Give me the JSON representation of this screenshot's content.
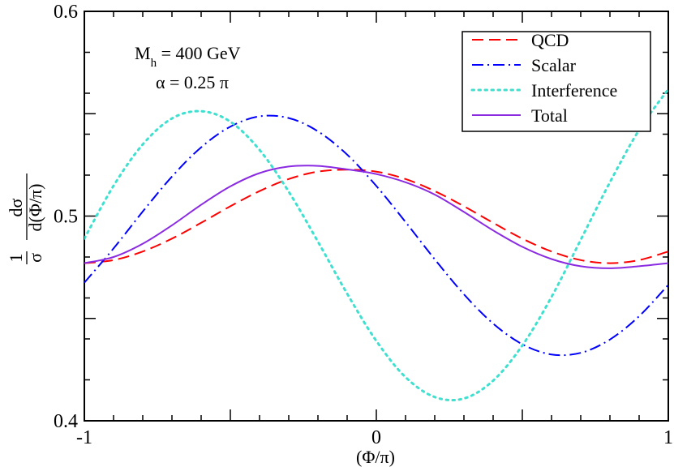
{
  "chart_data": {
    "type": "line",
    "xlabel": "(Φ/π)",
    "ylabel": {
      "one": "1",
      "sigma": "σ",
      "num": "dσ",
      "den": "d(Φ/π)"
    },
    "xlim": [
      -1,
      1
    ],
    "ylim": [
      0.4,
      0.6
    ],
    "xticks": [
      {
        "value": -1,
        "label": "-1"
      },
      {
        "value": 0,
        "label": "0"
      },
      {
        "value": 1,
        "label": "1"
      }
    ],
    "yticks": [
      {
        "value": 0.4,
        "label": "0.4"
      },
      {
        "value": 0.5,
        "label": "0.5"
      },
      {
        "value": 0.6,
        "label": "0.6"
      }
    ],
    "annotations": {
      "mass": {
        "base": "M",
        "sub": "h",
        "rest": " = 400 GeV"
      },
      "alpha": "α = 0.25 π"
    },
    "legend_position": "top-right",
    "x": [
      -1.0,
      -0.9,
      -0.8,
      -0.7,
      -0.6,
      -0.5,
      -0.4,
      -0.3,
      -0.2,
      -0.1,
      0.0,
      0.1,
      0.2,
      0.3,
      0.4,
      0.5,
      0.6,
      0.7,
      0.8,
      0.9,
      1.0
    ],
    "series": [
      {
        "name": "QCD",
        "color": "#ff0000",
        "dash": "14 7",
        "values": [
          0.477,
          0.4785,
          0.4827,
          0.489,
          0.4967,
          0.5048,
          0.5122,
          0.5181,
          0.5217,
          0.5227,
          0.5217,
          0.5181,
          0.5122,
          0.5048,
          0.4967,
          0.489,
          0.4827,
          0.4785,
          0.477,
          0.4785,
          0.4827
        ]
      },
      {
        "name": "Scalar",
        "color": "#0000ff",
        "dash": "14 5 2 5",
        "values": [
          0.4675,
          0.4842,
          0.5022,
          0.5193,
          0.5336,
          0.5437,
          0.5487,
          0.5479,
          0.5414,
          0.53,
          0.5147,
          0.4971,
          0.4789,
          0.4618,
          0.4475,
          0.4374,
          0.4324,
          0.4332,
          0.4397,
          0.4511,
          0.4664
        ]
      },
      {
        "name": "Interference",
        "color": "#40e0d0",
        "dash": "2.5 5.5",
        "values": [
          0.489,
          0.5148,
          0.535,
          0.5477,
          0.5512,
          0.5461,
          0.5323,
          0.5119,
          0.4875,
          0.4621,
          0.439,
          0.4213,
          0.4116,
          0.4109,
          0.4196,
          0.4368,
          0.4605,
          0.4884,
          0.5165,
          0.5421,
          0.562
        ]
      },
      {
        "name": "Total",
        "color": "#8a2be2",
        "dash": "",
        "values": [
          0.477,
          0.48,
          0.4865,
          0.4955,
          0.5055,
          0.5145,
          0.521,
          0.5242,
          0.5245,
          0.5228,
          0.5205,
          0.5165,
          0.5105,
          0.502,
          0.493,
          0.485,
          0.479,
          0.4755,
          0.4745,
          0.4755,
          0.477
        ]
      }
    ]
  }
}
